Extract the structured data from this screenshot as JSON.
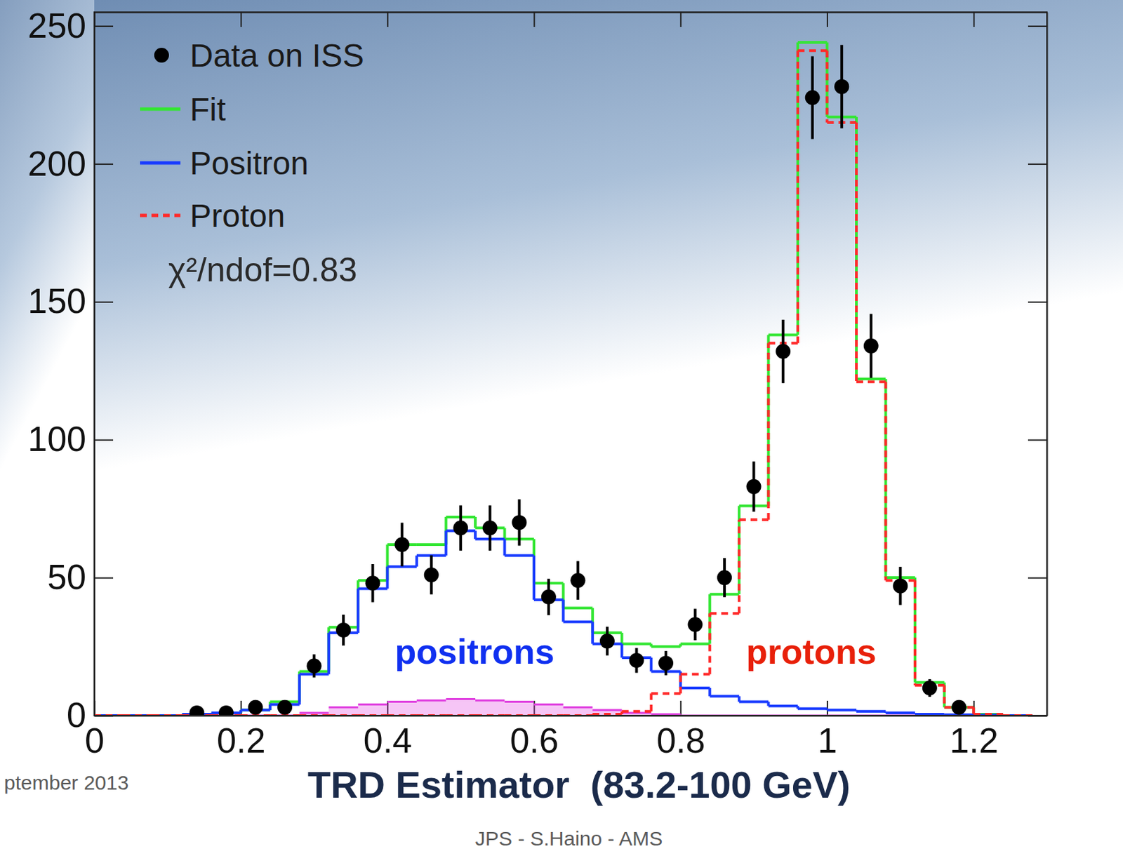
{
  "chart_data": {
    "type": "histogram",
    "x_label": "TRD Estimator  (83.2-100 GeV)",
    "bins": [
      0,
      0.04,
      0.08,
      0.12,
      0.16,
      0.2,
      0.24,
      0.28,
      0.32,
      0.36,
      0.4,
      0.44,
      0.48,
      0.52,
      0.56,
      0.6,
      0.64,
      0.68,
      0.72,
      0.76,
      0.8,
      0.84,
      0.88,
      0.92,
      0.96,
      1,
      1.04,
      1.08,
      1.12,
      1.16,
      1.2,
      1.24,
      1.28
    ],
    "xlim": [
      0,
      1.3
    ],
    "ylim": [
      0,
      255
    ],
    "xticks": [
      0,
      0.2,
      0.4,
      0.6,
      0.8,
      1,
      1.2
    ],
    "yticks": [
      0,
      50,
      100,
      150,
      200,
      250
    ],
    "legend": "top-left",
    "series": [
      {
        "name": "Data on ISS",
        "type": "scatter",
        "marker": "circle",
        "color": "#000000",
        "x": [
          0.14,
          0.18,
          0.22,
          0.26,
          0.3,
          0.34,
          0.38,
          0.42,
          0.46,
          0.5,
          0.54,
          0.58,
          0.62,
          0.66,
          0.7,
          0.74,
          0.78,
          0.82,
          0.86,
          0.9,
          0.94,
          0.98,
          1.02,
          1.06,
          1.1,
          1.14,
          1.18
        ],
        "values": [
          1,
          1,
          3,
          3,
          18,
          31,
          48,
          62,
          51,
          68,
          68,
          70,
          43,
          49,
          27,
          20,
          19,
          33,
          50,
          83,
          132,
          224,
          228,
          134,
          47,
          10,
          3
        ],
        "errors": [
          1,
          1,
          1.7,
          1.7,
          4.2,
          5.6,
          6.9,
          7.9,
          7.1,
          8.2,
          8.2,
          8.4,
          6.6,
          7,
          5.2,
          4.5,
          4.4,
          5.7,
          7.1,
          9.1,
          11.5,
          15,
          15.1,
          11.6,
          6.9,
          3.2,
          1.7
        ]
      },
      {
        "name": "Fit",
        "type": "step",
        "color": "#33e633",
        "line_style": "solid",
        "values": [
          0,
          0,
          0,
          0.5,
          1,
          2,
          5,
          16,
          32,
          49,
          62,
          62,
          72,
          68,
          64,
          48,
          39,
          30,
          26,
          25,
          26,
          44,
          76,
          138,
          244,
          217,
          122,
          50,
          12,
          3,
          0.5,
          0
        ]
      },
      {
        "name": "Positron",
        "type": "step",
        "color": "#1a3cff",
        "line_style": "solid",
        "values": [
          0,
          0,
          0,
          0.5,
          1,
          2,
          4,
          15,
          30,
          46,
          54,
          58,
          67,
          64,
          58,
          42,
          34,
          26,
          21,
          16,
          10,
          7,
          5,
          3.5,
          2.5,
          2,
          1.5,
          1,
          0.5,
          0.3,
          0.2,
          0
        ]
      },
      {
        "name": "Proton",
        "type": "step",
        "color": "#ff2a2a",
        "line_style": "dashed",
        "values": [
          0,
          0,
          0,
          0,
          0,
          0,
          0,
          0,
          0,
          0,
          0,
          0,
          0,
          0,
          0,
          0,
          0,
          0.5,
          1.5,
          8,
          15,
          37,
          71,
          135,
          241,
          215,
          121,
          49,
          11,
          3,
          0.5,
          0
        ]
      },
      {
        "type": "area",
        "color": "#e040e0",
        "values": [
          0,
          0,
          0,
          0,
          0,
          0,
          0,
          1,
          3,
          4,
          5,
          5.5,
          6,
          5.5,
          5,
          4,
          3,
          2,
          1,
          0.5,
          0,
          0,
          0,
          0,
          0,
          0,
          0,
          0,
          0,
          0,
          0,
          0
        ]
      }
    ],
    "annotations": [
      {
        "text": "χ²/ndof=0.83",
        "color": "#2a2a2a"
      },
      {
        "text": "positrons",
        "color": "#1030f0"
      },
      {
        "text": "protons",
        "color": "#e8200a"
      }
    ],
    "footer": [
      "ptember 2013",
      "JPS - S.Haino - AMS"
    ]
  }
}
